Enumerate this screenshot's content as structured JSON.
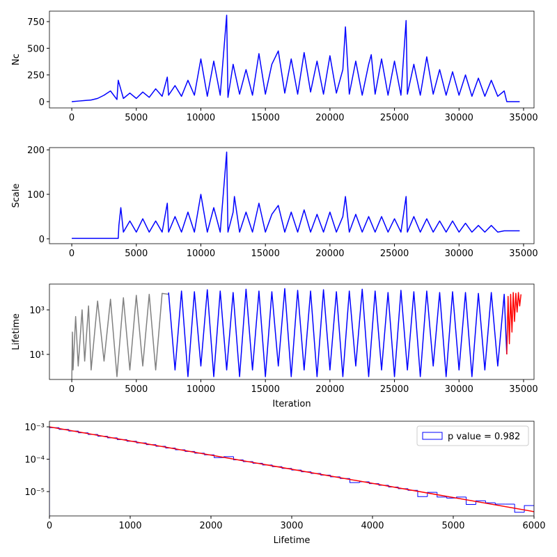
{
  "chart_data": [
    {
      "type": "line",
      "ylabel": "Nc",
      "xlim": [
        -1730,
        35810
      ],
      "ylim": [
        -59,
        848
      ],
      "xticks": [
        0,
        5000,
        10000,
        15000,
        20000,
        25000,
        30000,
        35000
      ],
      "yticks": [
        0,
        250,
        500,
        750
      ],
      "series": [
        {
          "color": "#0000ff",
          "x": [
            0,
            500,
            1000,
            1500,
            2000,
            2500,
            3000,
            3500,
            3600,
            4000,
            4500,
            5000,
            5500,
            6000,
            6500,
            7000,
            7400,
            7500,
            8000,
            8500,
            9000,
            9500,
            10000,
            10500,
            11000,
            11500,
            12000,
            12100,
            12500,
            13000,
            13500,
            14000,
            14500,
            15000,
            15500,
            16000,
            16500,
            17000,
            17500,
            18000,
            18500,
            19000,
            19500,
            20000,
            20500,
            21000,
            21200,
            21500,
            22000,
            22500,
            23000,
            23200,
            23500,
            24000,
            24500,
            25000,
            25500,
            25900,
            26000,
            26500,
            27000,
            27500,
            28000,
            28500,
            29000,
            29500,
            30000,
            30500,
            31000,
            31500,
            32000,
            32500,
            33000,
            33500,
            33700,
            34700
          ],
          "values": [
            0,
            5,
            10,
            15,
            30,
            60,
            100,
            20,
            200,
            30,
            80,
            30,
            90,
            40,
            120,
            50,
            230,
            60,
            150,
            50,
            200,
            60,
            400,
            50,
            380,
            60,
            810,
            40,
            350,
            70,
            300,
            60,
            450,
            70,
            350,
            475,
            80,
            400,
            70,
            460,
            90,
            380,
            70,
            430,
            80,
            300,
            700,
            70,
            380,
            60,
            350,
            440,
            70,
            400,
            60,
            380,
            60,
            760,
            70,
            350,
            60,
            420,
            70,
            300,
            60,
            280,
            60,
            250,
            50,
            220,
            50,
            200,
            50,
            100,
            0,
            0
          ]
        }
      ]
    },
    {
      "type": "line",
      "ylabel": "Scale",
      "xlim": [
        -1730,
        35810
      ],
      "ylim": [
        -11,
        205
      ],
      "xticks": [
        0,
        5000,
        10000,
        15000,
        20000,
        25000,
        30000,
        35000
      ],
      "yticks": [
        0,
        100,
        200
      ],
      "series": [
        {
          "color": "#0000ff",
          "x": [
            0,
            3600,
            3650,
            3800,
            4000,
            4500,
            5000,
            5500,
            6000,
            6500,
            7000,
            7400,
            7500,
            8000,
            8500,
            9000,
            9500,
            10000,
            10500,
            11000,
            11500,
            12000,
            12100,
            12500,
            12600,
            13000,
            13500,
            14000,
            14500,
            15000,
            15500,
            16000,
            16500,
            17000,
            17500,
            18000,
            18500,
            19000,
            19500,
            20000,
            20500,
            21000,
            21200,
            21500,
            22000,
            22500,
            23000,
            23500,
            24000,
            24500,
            25000,
            25500,
            25900,
            26000,
            26500,
            27000,
            27500,
            28000,
            28500,
            29000,
            29500,
            30000,
            30500,
            31000,
            31500,
            32000,
            32500,
            33000,
            33500,
            34700
          ],
          "values": [
            1,
            1,
            30,
            70,
            15,
            40,
            15,
            45,
            15,
            40,
            15,
            80,
            15,
            50,
            15,
            60,
            15,
            100,
            15,
            70,
            15,
            195,
            15,
            60,
            95,
            15,
            60,
            15,
            80,
            15,
            55,
            75,
            15,
            60,
            15,
            65,
            15,
            55,
            15,
            60,
            15,
            50,
            95,
            15,
            55,
            15,
            50,
            15,
            50,
            15,
            45,
            15,
            95,
            15,
            50,
            15,
            45,
            15,
            40,
            15,
            40,
            15,
            35,
            15,
            30,
            15,
            30,
            15,
            18,
            18
          ]
        }
      ]
    },
    {
      "type": "line",
      "ylabel": "Lifetime",
      "xlabel": "Iteration",
      "log_y": true,
      "xlim": [
        -1730,
        35810
      ],
      "ylim": [
        0.75,
        14400
      ],
      "xticks": [
        0,
        5000,
        10000,
        15000,
        20000,
        25000,
        30000,
        35000
      ],
      "yticks": [
        {
          "value": 10,
          "label": "10¹"
        },
        {
          "value": 1000,
          "label": "10³"
        }
      ],
      "series": [
        {
          "color": "#808080",
          "x": [
            0,
            50,
            100,
            300,
            500,
            800,
            1000,
            1300,
            1500,
            2000,
            2500,
            3000,
            3500,
            4000,
            4500,
            5000,
            5500,
            6000,
            6500,
            7000,
            7500
          ],
          "values": [
            0.5,
            100,
            2,
            500,
            3,
            1000,
            5,
            1500,
            2,
            2500,
            5,
            3000,
            1,
            3500,
            2,
            4500,
            3,
            5000,
            2,
            5500,
            5000
          ]
        },
        {
          "color": "#0000ff",
          "x": [
            7500,
            8000,
            8500,
            9000,
            9500,
            10000,
            10500,
            11000,
            11500,
            12000,
            12500,
            13000,
            13500,
            14000,
            14500,
            15000,
            15500,
            16000,
            16500,
            17000,
            17500,
            18000,
            18500,
            19000,
            19500,
            20000,
            20500,
            21000,
            21500,
            22000,
            22500,
            23000,
            23500,
            24000,
            24500,
            25000,
            25500,
            26000,
            26500,
            27000,
            27500,
            28000,
            28500,
            29000,
            29500,
            30000,
            30500,
            31000,
            31500,
            32000,
            32500,
            33000,
            33500,
            33700
          ],
          "values": [
            6000,
            2,
            7000,
            1,
            6500,
            3,
            8000,
            1,
            7000,
            2,
            6000,
            1,
            8500,
            2,
            7000,
            1,
            6500,
            3,
            9000,
            1,
            7500,
            2,
            7000,
            1,
            8000,
            2,
            6500,
            1,
            7000,
            3,
            8500,
            1,
            7000,
            2,
            6000,
            1,
            7500,
            2,
            6500,
            1,
            7000,
            3,
            6000,
            1,
            6500,
            2,
            6000,
            1,
            5500,
            2,
            6000,
            3,
            5000,
            10
          ]
        },
        {
          "color": "#ff0000",
          "x": [
            33700,
            33800,
            33900,
            34000,
            34100,
            34200,
            34300,
            34400,
            34500,
            34600,
            34700,
            34800
          ],
          "values": [
            10,
            4000,
            30,
            5000,
            100,
            6000,
            300,
            5500,
            800,
            6000,
            1500,
            5000
          ]
        }
      ]
    },
    {
      "type": "histogram",
      "xlabel": "Lifetime",
      "log_y": true,
      "xlim": [
        0,
        6000
      ],
      "ylim": [
        1.77e-06,
        0.00149
      ],
      "xticks": [
        0,
        1000,
        2000,
        3000,
        4000,
        5000,
        6000
      ],
      "yticks": [
        {
          "value": 1e-05,
          "label": "10⁻⁵"
        },
        {
          "value": 0.0001,
          "label": "10⁻⁴"
        },
        {
          "value": 0.001,
          "label": "10⁻³"
        }
      ],
      "legend": "upper right",
      "series": [
        {
          "name": "p value = 0.982",
          "color": "#0000ff",
          "bins": [
            0,
            120,
            240,
            360,
            480,
            600,
            720,
            840,
            960,
            1080,
            1200,
            1320,
            1440,
            1560,
            1680,
            1800,
            1920,
            2040,
            2160,
            2280,
            2400,
            2520,
            2640,
            2760,
            2880,
            3000,
            3120,
            3240,
            3360,
            3480,
            3600,
            3720,
            3840,
            3960,
            4080,
            4200,
            4320,
            4440,
            4560,
            4680,
            4800,
            4920,
            5040,
            5160,
            5280,
            5400,
            5520,
            5640,
            5760,
            5880,
            6000
          ],
          "values": [
            0.00094,
            0.000833,
            0.000739,
            0.000655,
            0.00058,
            0.000514,
            0.000456,
            0.000404,
            0.000358,
            0.000318,
            0.000282,
            0.00025,
            0.000221,
            0.000196,
            0.000174,
            0.000154,
            0.000137,
            0.000112,
            0.00012,
            9.52e-05,
            8.44e-05,
            7.48e-05,
            6.63e-05,
            5.88e-05,
            5.21e-05,
            4.62e-05,
            4.09e-05,
            3.63e-05,
            3.22e-05,
            2.85e-05,
            2.53e-05,
            1.9e-05,
            2e-05,
            1.76e-05,
            1.56e-05,
            1.38e-05,
            1.23e-05,
            1.09e-05,
            7e-06,
            9.5e-06,
            6.8e-06,
            6.3e-06,
            6.8e-06,
            4e-06,
            5.2e-06,
            4.5e-06,
            4.1e-06,
            4.1e-06,
            2.3e-06,
            3.7e-06
          ]
        }
      ],
      "fit": {
        "color": "#ff0000",
        "x": [
          0,
          6000
        ],
        "values": [
          0.001,
          2.4e-06
        ]
      }
    }
  ]
}
